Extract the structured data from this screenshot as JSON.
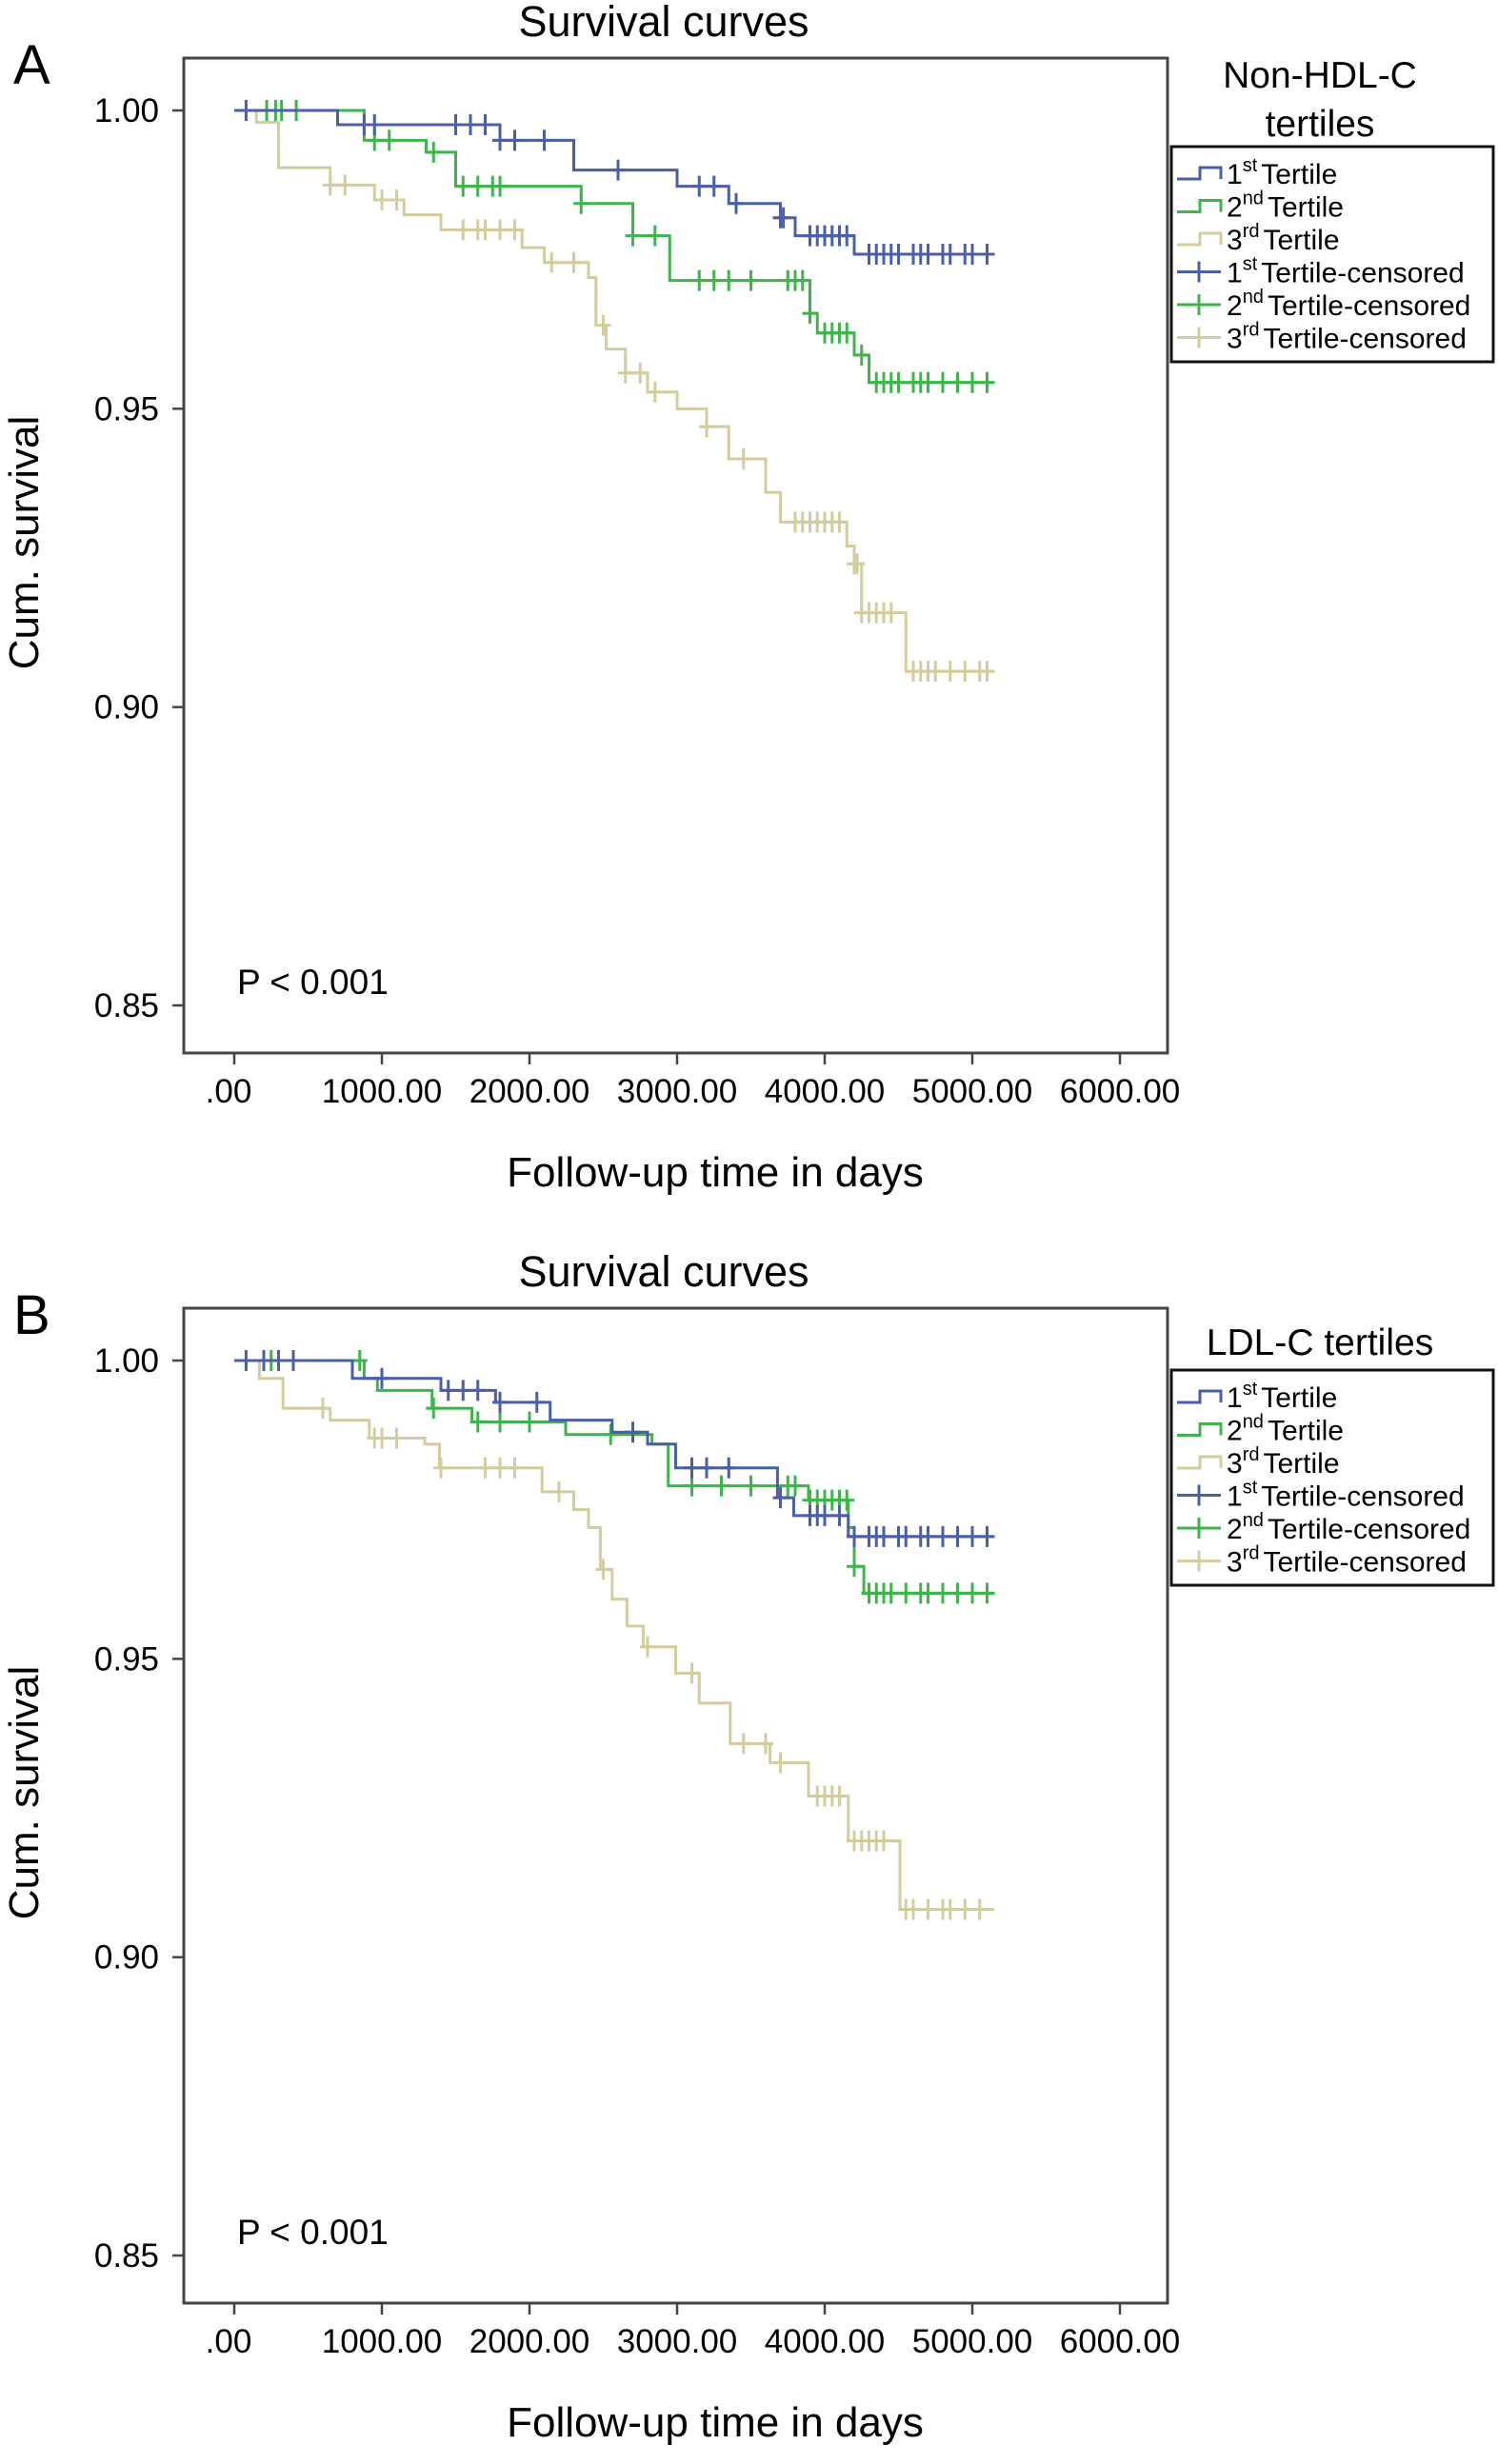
{
  "chart_data": [
    {
      "type": "line",
      "panel_label": "A",
      "title": "Survival curves",
      "xlabel": "Follow-up time in days",
      "ylabel": "Cum. survival",
      "xlim": [
        -300,
        6300
      ],
      "ylim": [
        0.837,
        1.009
      ],
      "xticks": [
        0,
        1000,
        2000,
        3000,
        4000,
        5000,
        6000
      ],
      "xtick_labels": [
        ".00",
        "1000.00",
        "2000.00",
        "3000.00",
        "4000.00",
        "5000.00",
        "6000.00"
      ],
      "yticks": [
        1.0,
        0.95,
        0.9,
        0.85
      ],
      "ytick_labels": [
        "1.00",
        "0.95",
        "0.90",
        "0.85"
      ],
      "annotation": "P < 0.001",
      "legend": {
        "title_lines": [
          "Non-HDL-C",
          "tertiles"
        ],
        "placement": "right",
        "entries": [
          {
            "num": "1",
            "sup": "st",
            "text": "Tertile"
          },
          {
            "num": "2",
            "sup": "nd",
            "text": "Tertile"
          },
          {
            "num": "3",
            "sup": "rd",
            "text": "Tertile"
          },
          {
            "num": "1",
            "sup": "st",
            "text": "Tertile-censored"
          },
          {
            "num": "2",
            "sup": "nd",
            "text": "Tertile-censored"
          },
          {
            "num": "3",
            "sup": "rd",
            "text": "Tertile-censored"
          }
        ]
      },
      "series": [
        {
          "name": "1st Tertile",
          "color": "#4b5ea8",
          "steps": [
            [
              0,
              1.0
            ],
            [
              700,
              0.9976
            ],
            [
              1800,
              0.995
            ],
            [
              2300,
              0.99
            ],
            [
              3000,
              0.9873
            ],
            [
              3350,
              0.9844
            ],
            [
              3700,
              0.982
            ],
            [
              3800,
              0.979
            ],
            [
              4200,
              0.9759
            ]
          ],
          "end": 5150,
          "censored": [
            80,
            880,
            950,
            1500,
            1600,
            1700,
            1800,
            1900,
            2100,
            2600,
            3150,
            3250,
            3400,
            3700,
            3720,
            3900,
            3950,
            4000,
            4050,
            4100,
            4150,
            4300,
            4350,
            4400,
            4450,
            4500,
            4600,
            4650,
            4700,
            4800,
            4850,
            4950,
            5000,
            5100
          ]
        },
        {
          "name": "2nd Tertile",
          "color": "#3db54a",
          "steps": [
            [
              0,
              1.0
            ],
            [
              880,
              0.995
            ],
            [
              1300,
              0.993
            ],
            [
              1500,
              0.9873
            ],
            [
              2350,
              0.9844
            ],
            [
              2700,
              0.979
            ],
            [
              2950,
              0.9715
            ],
            [
              3900,
              0.966
            ],
            [
              3950,
              0.9627
            ],
            [
              4200,
              0.959
            ],
            [
              4300,
              0.9544
            ]
          ],
          "end": 5150,
          "censored": [
            220,
            280,
            320,
            420,
            950,
            1050,
            1350,
            1550,
            1650,
            1750,
            1800,
            2350,
            2700,
            2850,
            3150,
            3250,
            3350,
            3500,
            3750,
            3800,
            3850,
            3900,
            4000,
            4050,
            4100,
            4150,
            4250,
            4350,
            4400,
            4450,
            4500,
            4600,
            4650,
            4700,
            4800,
            4900,
            5000,
            5100
          ]
        },
        {
          "name": "3rd Tertile",
          "color": "#d3cc9c",
          "steps": [
            [
              0,
              1.0
            ],
            [
              150,
              0.998
            ],
            [
              300,
              0.9904
            ],
            [
              650,
              0.9875
            ],
            [
              950,
              0.985
            ],
            [
              1150,
              0.9825
            ],
            [
              1400,
              0.98
            ],
            [
              1950,
              0.977
            ],
            [
              2100,
              0.9745
            ],
            [
              2400,
              0.972
            ],
            [
              2450,
              0.964
            ],
            [
              2520,
              0.96
            ],
            [
              2650,
              0.956
            ],
            [
              2800,
              0.9528
            ],
            [
              3000,
              0.95
            ],
            [
              3200,
              0.947
            ],
            [
              3350,
              0.9416
            ],
            [
              3600,
              0.936
            ],
            [
              3700,
              0.931
            ],
            [
              4150,
              0.927
            ],
            [
              4200,
              0.924
            ],
            [
              4250,
              0.9158
            ],
            [
              4550,
              0.906
            ]
          ],
          "end": 5150,
          "censored": [
            650,
            750,
            1000,
            1100,
            1550,
            1650,
            1700,
            1800,
            1900,
            2150,
            2300,
            2500,
            2650,
            2750,
            2850,
            3200,
            3450,
            3800,
            3850,
            3900,
            3950,
            4000,
            4050,
            4100,
            4200,
            4220,
            4250,
            4300,
            4350,
            4400,
            4450,
            4600,
            4650,
            4700,
            4750,
            4850,
            4950,
            5050,
            5100
          ]
        }
      ]
    },
    {
      "type": "line",
      "panel_label": "B",
      "title": "Survival curves",
      "xlabel": "Follow-up time in days",
      "ylabel": "Cum. survival",
      "xlim": [
        -300,
        6300
      ],
      "ylim": [
        0.837,
        1.009
      ],
      "xticks": [
        0,
        1000,
        2000,
        3000,
        4000,
        5000,
        6000
      ],
      "xtick_labels": [
        ".00",
        "1000.00",
        "2000.00",
        "3000.00",
        "4000.00",
        "5000.00",
        "6000.00"
      ],
      "yticks": [
        1.0,
        0.95,
        0.9,
        0.85
      ],
      "ytick_labels": [
        "1.00",
        "0.95",
        "0.90",
        "0.85"
      ],
      "annotation": "P < 0.001",
      "legend": {
        "title_lines": [
          "LDL-C tertiles"
        ],
        "placement": "right",
        "entries": [
          {
            "num": "1",
            "sup": "st",
            "text": "Tertile"
          },
          {
            "num": "2",
            "sup": "nd",
            "text": "Tertile"
          },
          {
            "num": "3",
            "sup": "rd",
            "text": "Tertile"
          },
          {
            "num": "1",
            "sup": "st",
            "text": "Tertile-censored"
          },
          {
            "num": "2",
            "sup": "nd",
            "text": "Tertile-censored"
          },
          {
            "num": "3",
            "sup": "rd",
            "text": "Tertile-censored"
          }
        ]
      },
      "series": [
        {
          "name": "1st Tertile",
          "color": "#4b5ea8",
          "steps": [
            [
              0,
              1.0
            ],
            [
              800,
              0.997
            ],
            [
              1400,
              0.995
            ],
            [
              1770,
              0.993
            ],
            [
              2140,
              0.99
            ],
            [
              2560,
              0.988
            ],
            [
              2800,
              0.986
            ],
            [
              2990,
              0.982
            ],
            [
              3680,
              0.977
            ],
            [
              3790,
              0.974
            ],
            [
              4160,
              0.9705
            ]
          ],
          "end": 5150,
          "censored": [
            80,
            200,
            300,
            400,
            1000,
            1450,
            1550,
            1650,
            1800,
            2050,
            2700,
            3100,
            3200,
            3350,
            3700,
            3900,
            3950,
            4000,
            4100,
            4200,
            4300,
            4350,
            4400,
            4500,
            4550,
            4650,
            4700,
            4800,
            4900,
            5000,
            5100
          ]
        },
        {
          "name": "2nd Tertile",
          "color": "#3db54a",
          "steps": [
            [
              0,
              1.0
            ],
            [
              880,
              0.997
            ],
            [
              970,
              0.995
            ],
            [
              1340,
              0.992
            ],
            [
              1610,
              0.9897
            ],
            [
              2245,
              0.9876
            ],
            [
              2830,
              0.986
            ],
            [
              2940,
              0.979
            ],
            [
              3890,
              0.9766
            ],
            [
              4160,
              0.972
            ],
            [
              4200,
              0.9655
            ],
            [
              4265,
              0.961
            ]
          ],
          "end": 5150,
          "censored": [
            200,
            250,
            300,
            850,
            1350,
            1650,
            1800,
            2000,
            2550,
            3100,
            3300,
            3500,
            3750,
            3800,
            3900,
            3950,
            4000,
            4050,
            4100,
            4150,
            4200,
            4300,
            4350,
            4400,
            4450,
            4550,
            4650,
            4700,
            4800,
            4900,
            5000,
            5100
          ]
        },
        {
          "name": "3rd Tertile",
          "color": "#d3cc9c",
          "steps": [
            [
              0,
              1.0
            ],
            [
              170,
              0.997
            ],
            [
              330,
              0.992
            ],
            [
              650,
              0.99
            ],
            [
              915,
              0.987
            ],
            [
              1290,
              0.986
            ],
            [
              1390,
              0.982
            ],
            [
              2085,
              0.978
            ],
            [
              2300,
              0.975
            ],
            [
              2400,
              0.972
            ],
            [
              2480,
              0.965
            ],
            [
              2560,
              0.96
            ],
            [
              2660,
              0.9555
            ],
            [
              2770,
              0.952
            ],
            [
              2990,
              0.9476
            ],
            [
              3150,
              0.9426
            ],
            [
              3360,
              0.9358
            ],
            [
              3630,
              0.9326
            ],
            [
              3890,
              0.927
            ],
            [
              4160,
              0.9195
            ],
            [
              4510,
              0.908
            ]
          ],
          "end": 5150,
          "censored": [
            600,
            950,
            1000,
            1100,
            1400,
            1700,
            1800,
            1900,
            2200,
            2500,
            2800,
            3100,
            3450,
            3600,
            3700,
            3950,
            4000,
            4050,
            4100,
            4200,
            4250,
            4300,
            4350,
            4400,
            4550,
            4600,
            4700,
            4800,
            4850,
            4950,
            5050
          ]
        }
      ]
    }
  ]
}
